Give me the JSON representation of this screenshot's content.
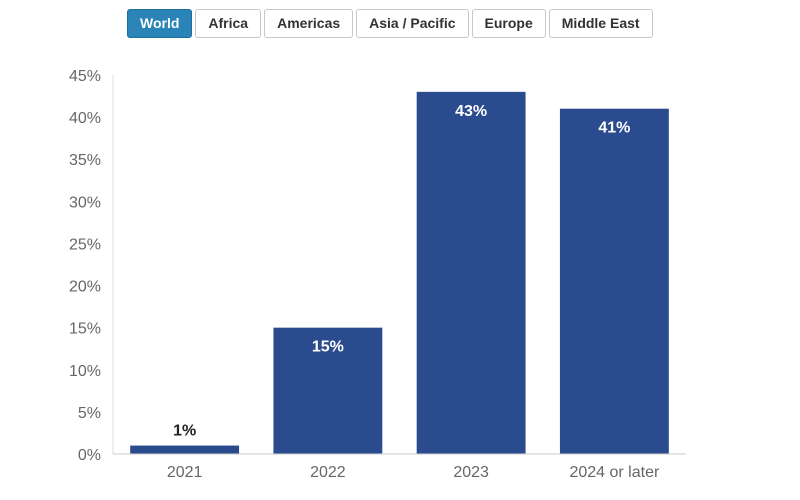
{
  "tabs": [
    {
      "label": "World",
      "active": true
    },
    {
      "label": "Africa",
      "active": false
    },
    {
      "label": "Americas",
      "active": false
    },
    {
      "label": "Asia / Pacific",
      "active": false
    },
    {
      "label": "Europe",
      "active": false
    },
    {
      "label": "Middle East",
      "active": false
    }
  ],
  "colors": {
    "bar": "#2a4b8d",
    "active_tab": "#2a84b8"
  },
  "chart_data": {
    "type": "bar",
    "categories": [
      "2021",
      "2022",
      "2023",
      "2024 or later"
    ],
    "values": [
      1,
      15,
      43,
      41
    ],
    "data_labels": [
      "1%",
      "15%",
      "43%",
      "41%"
    ],
    "ylim": [
      0,
      45
    ],
    "yticks": [
      0,
      5,
      10,
      15,
      20,
      25,
      30,
      35,
      40,
      45
    ],
    "ytick_labels": [
      "0%",
      "5%",
      "10%",
      "15%",
      "20%",
      "25%",
      "30%",
      "35%",
      "40%",
      "45%"
    ],
    "grid": false,
    "title": "",
    "xlabel": "",
    "ylabel": ""
  }
}
